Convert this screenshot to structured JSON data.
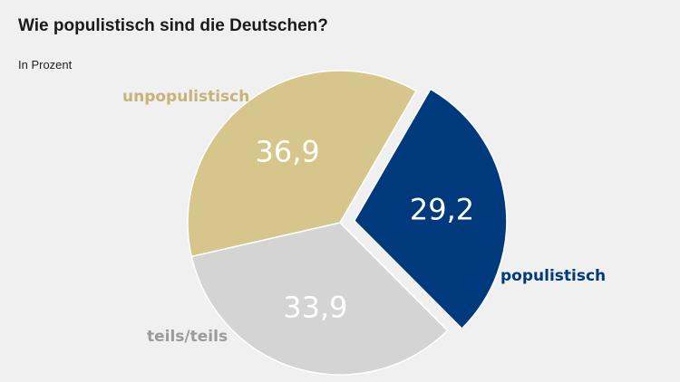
{
  "header": {
    "title": "Wie populistisch sind die Deutschen?",
    "subtitle": "In Prozent"
  },
  "chart_data": {
    "type": "pie",
    "title": "Wie populistisch sind die Deutschen?",
    "subtitle": "In Prozent",
    "categories": [
      "populistisch",
      "teils/teils",
      "unpopulistisch"
    ],
    "values": [
      29.2,
      33.9,
      36.9
    ],
    "value_labels": [
      "29,2",
      "33,9",
      "36,9"
    ],
    "colors": [
      "#003a7d",
      "#d3d4d3",
      "#d6c68b"
    ],
    "label_colors": [
      "#003a7d",
      "#9a9a9a",
      "#c7b27a"
    ],
    "exploded": [
      "populistisch"
    ],
    "legend": "none"
  }
}
